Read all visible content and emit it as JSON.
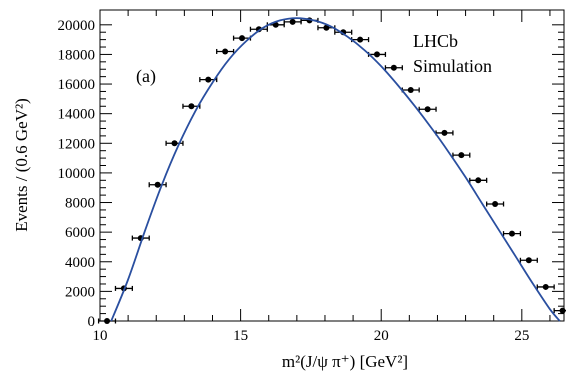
{
  "chart_data": {
    "type": "scatter",
    "xlabel": "m²(J/ψ π⁺) [GeV²]",
    "ylabel": "Events / (0.6 GeV²)",
    "xlim": [
      10,
      26.5
    ],
    "ylim": [
      0,
      21000
    ],
    "xticks": [
      10,
      15,
      20,
      25
    ],
    "yticks": [
      0,
      2000,
      4000,
      6000,
      8000,
      10000,
      12000,
      14000,
      16000,
      18000,
      20000
    ],
    "annotations": [
      "LHCb",
      "Simulation",
      "(a)"
    ],
    "bin_half_width": 0.3,
    "series": [
      {
        "kind": "points_with_xerr",
        "x": [
          10.25,
          10.85,
          11.45,
          12.05,
          12.65,
          13.25,
          13.85,
          14.45,
          15.05,
          15.65,
          16.25,
          16.85,
          17.45,
          18.05,
          18.65,
          19.25,
          19.85,
          20.45,
          21.05,
          21.65,
          22.25,
          22.85,
          23.45,
          24.05,
          24.65,
          25.25,
          25.85,
          26.45
        ],
        "y": [
          0,
          2200,
          5600,
          9200,
          12000,
          14500,
          16300,
          18200,
          19100,
          19700,
          20000,
          20200,
          20300,
          19800,
          19500,
          19000,
          18000,
          17100,
          15600,
          14300,
          12700,
          11200,
          9500,
          7900,
          5900,
          4100,
          2300,
          700
        ]
      },
      {
        "kind": "curve",
        "color": "#2a4fa0",
        "x": [
          10.4,
          11.0,
          11.6,
          12.2,
          12.8,
          13.4,
          14.0,
          14.6,
          15.2,
          15.8,
          16.4,
          17.0,
          17.6,
          18.2,
          18.8,
          19.4,
          20.0,
          20.6,
          21.2,
          21.8,
          22.4,
          23.0,
          23.6,
          24.2,
          24.8,
          25.4,
          26.0,
          26.35
        ],
        "y": [
          0,
          2800,
          6100,
          9200,
          11900,
          14200,
          16100,
          17700,
          18900,
          19800,
          20300,
          20450,
          20300,
          19900,
          19200,
          18300,
          17200,
          15900,
          14500,
          13000,
          11400,
          9700,
          7900,
          6100,
          4300,
          2500,
          800,
          0
        ]
      }
    ]
  }
}
